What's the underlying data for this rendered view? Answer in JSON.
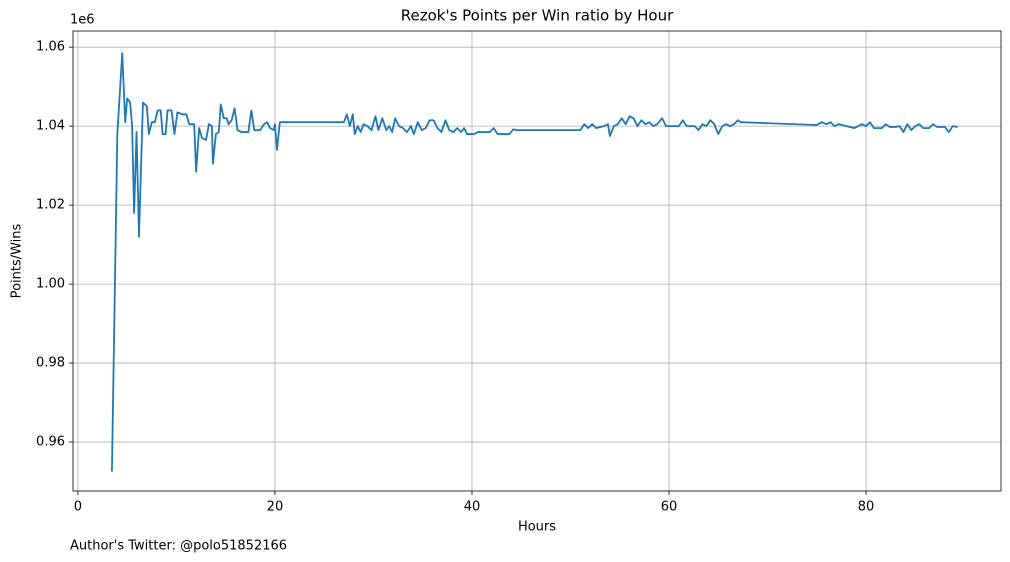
{
  "chart_data": {
    "type": "line",
    "title": "Rezok's Points per Win ratio by Hour",
    "xlabel": "Hours",
    "ylabel": "Points/Wins",
    "y_offset_label": "1e6",
    "footnote": "Author's Twitter: @polo51852166",
    "color": "#1f77b4",
    "grid": true,
    "xlim": [
      -0.5,
      93.7
    ],
    "ylim": [
      0.9476,
      1.0641
    ],
    "xticks": [
      0,
      20,
      40,
      60,
      80
    ],
    "yticks": [
      0.96,
      0.98,
      {
        "value": 1.0,
        "label": "1.00"
      },
      1.02,
      1.04,
      1.06
    ],
    "x": [
      3.45,
      4.0,
      4.5,
      4.8,
      5.0,
      5.3,
      5.5,
      5.7,
      5.95,
      6.2,
      6.6,
      7.0,
      7.2,
      7.5,
      7.8,
      8.1,
      8.4,
      8.6,
      8.9,
      9.1,
      9.5,
      9.8,
      10.1,
      10.6,
      11.0,
      11.3,
      11.8,
      12.0,
      12.3,
      12.6,
      13.0,
      13.3,
      13.6,
      13.7,
      14.0,
      14.3,
      14.5,
      14.8,
      15.1,
      15.3,
      15.6,
      15.9,
      16.2,
      16.6,
      17.3,
      17.6,
      17.9,
      18.5,
      18.9,
      19.2,
      19.5,
      19.9,
      20.0,
      20.2,
      20.5,
      27.0,
      27.3,
      27.6,
      27.9,
      28.1,
      28.4,
      28.7,
      29.0,
      29.4,
      29.8,
      30.2,
      30.5,
      30.9,
      31.3,
      31.6,
      31.9,
      32.2,
      32.6,
      33.0,
      33.4,
      33.8,
      34.1,
      34.5,
      34.9,
      35.3,
      35.7,
      36.1,
      36.5,
      36.9,
      37.3,
      37.7,
      38.1,
      38.5,
      38.9,
      39.2,
      39.5,
      40.2,
      40.6,
      41.8,
      42.2,
      42.6,
      43.8,
      44.2,
      44.6,
      51.0,
      51.4,
      51.8,
      52.2,
      52.6,
      53.4,
      53.8,
      54.0,
      54.4,
      54.8,
      55.2,
      55.6,
      56.0,
      56.4,
      56.8,
      57.2,
      57.6,
      58.0,
      58.4,
      58.8,
      59.3,
      59.7,
      61.0,
      61.4,
      61.8,
      62.6,
      63.0,
      63.4,
      63.8,
      64.2,
      64.6,
      65.0,
      65.4,
      65.8,
      66.2,
      66.6,
      67.0,
      67.3,
      75.0,
      75.5,
      76.0,
      76.4,
      76.8,
      77.2,
      78.0,
      78.8,
      79.6,
      80.0,
      80.4,
      80.8,
      81.6,
      82.0,
      82.4,
      83.0,
      83.4,
      83.8,
      84.2,
      84.6,
      85.0,
      85.4,
      85.8,
      86.4,
      86.8,
      87.2,
      88.0,
      88.4,
      88.8,
      89.3
    ],
    "values": [
      0.9525,
      1.038,
      1.0585,
      1.041,
      1.047,
      1.046,
      1.04,
      1.018,
      1.0385,
      1.012,
      1.046,
      1.045,
      1.038,
      1.041,
      1.041,
      1.044,
      1.044,
      1.038,
      1.038,
      1.044,
      1.044,
      1.038,
      1.0435,
      1.043,
      1.043,
      1.0405,
      1.0405,
      1.0285,
      1.0395,
      1.037,
      1.0365,
      1.0405,
      1.04,
      1.0305,
      1.038,
      1.0385,
      1.0455,
      1.042,
      1.042,
      1.0405,
      1.0415,
      1.0445,
      1.039,
      1.0385,
      1.0385,
      1.044,
      1.039,
      1.039,
      1.0405,
      1.041,
      1.0395,
      1.039,
      1.0405,
      1.034,
      1.041,
      1.041,
      1.043,
      1.04,
      1.043,
      1.038,
      1.04,
      1.0385,
      1.0405,
      1.04,
      1.039,
      1.0425,
      1.039,
      1.042,
      1.039,
      1.04,
      1.0385,
      1.042,
      1.04,
      1.0395,
      1.0385,
      1.04,
      1.038,
      1.041,
      1.039,
      1.0395,
      1.0415,
      1.0415,
      1.0395,
      1.0385,
      1.0415,
      1.039,
      1.0385,
      1.0395,
      1.0385,
      1.0395,
      1.038,
      1.038,
      1.0385,
      1.0385,
      1.0395,
      1.038,
      1.038,
      1.0392,
      1.039,
      1.039,
      1.0405,
      1.0395,
      1.0405,
      1.0395,
      1.04,
      1.0405,
      1.0375,
      1.04,
      1.0405,
      1.042,
      1.0405,
      1.0425,
      1.042,
      1.04,
      1.0415,
      1.0405,
      1.041,
      1.04,
      1.0405,
      1.042,
      1.04,
      1.04,
      1.0415,
      1.04,
      1.04,
      1.039,
      1.0405,
      1.04,
      1.0415,
      1.0405,
      1.038,
      1.04,
      1.0405,
      1.04,
      1.0405,
      1.0415,
      1.041,
      1.0403,
      1.041,
      1.0405,
      1.041,
      1.04,
      1.0405,
      1.04,
      1.0395,
      1.0405,
      1.04,
      1.041,
      1.0395,
      1.0395,
      1.0405,
      1.0398,
      1.0398,
      1.04,
      1.0385,
      1.0405,
      1.039,
      1.04,
      1.0405,
      1.0395,
      1.0395,
      1.0405,
      1.0398,
      1.0398,
      1.0385,
      1.04,
      1.0398
    ]
  }
}
